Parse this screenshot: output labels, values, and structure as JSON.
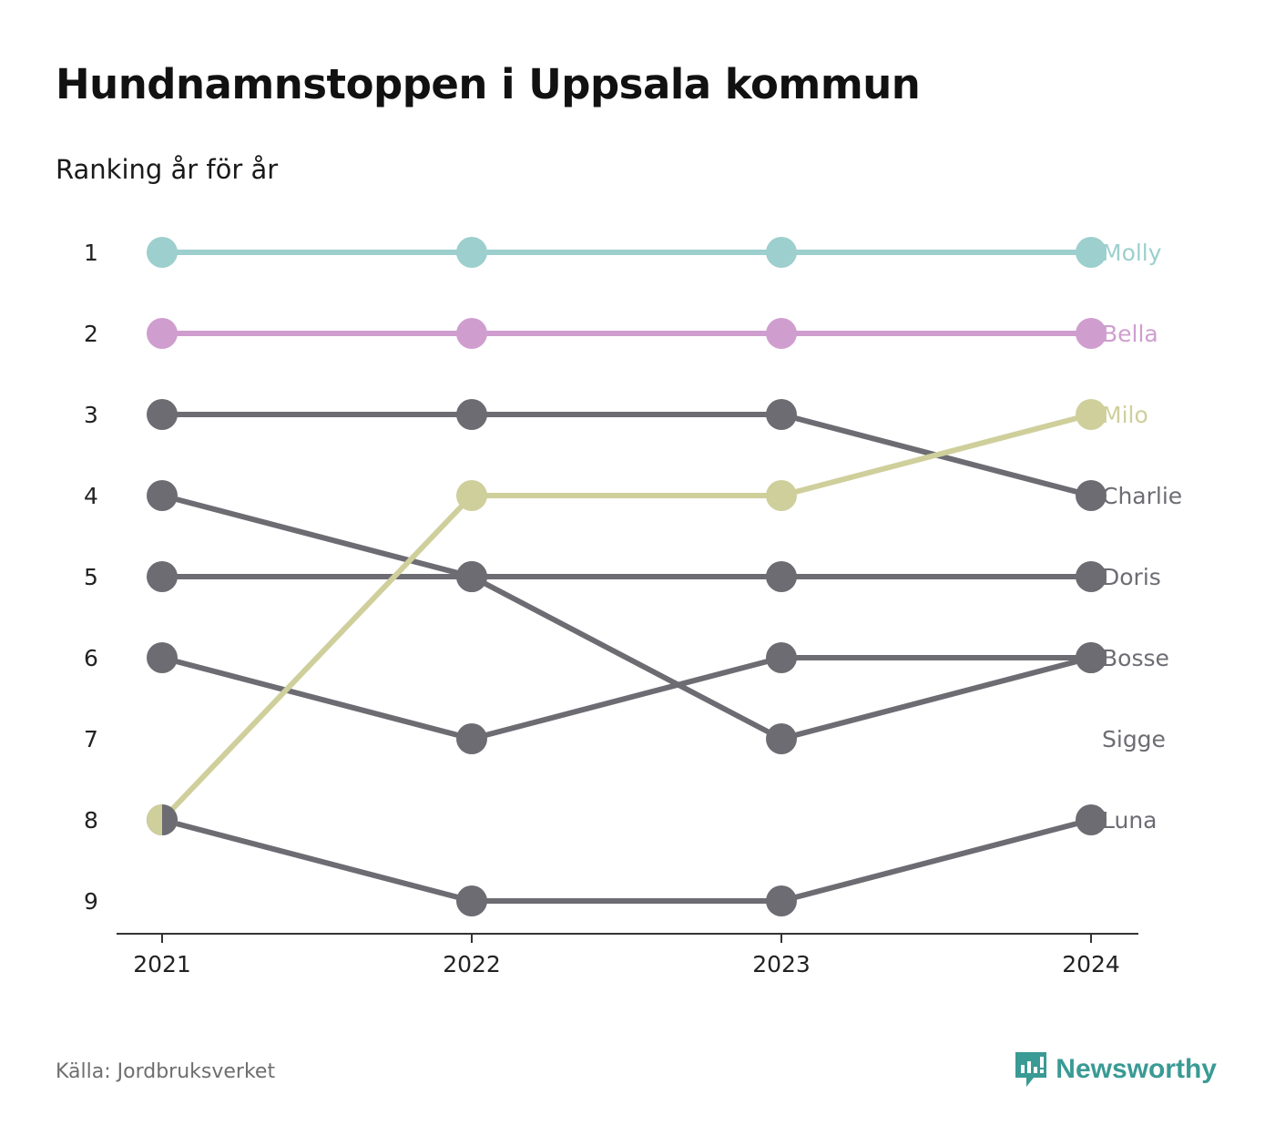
{
  "title": "Hundnamnstoppen i Uppsala kommun",
  "subtitle": "Ranking år för år",
  "source": "Källa: Jordbruksverket",
  "brand": {
    "name": "Newsworthy",
    "icon": "newsworthy-logo-icon",
    "color": "#3a9a94"
  },
  "chart_data": {
    "type": "line",
    "subtype": "bump",
    "x": [
      "2021",
      "2022",
      "2023",
      "2024"
    ],
    "ranks": [
      1,
      2,
      3,
      4,
      5,
      6,
      7,
      8,
      9
    ],
    "y_inverted": true,
    "grid": false,
    "series": [
      {
        "name": "Molly",
        "color": "#9ccfcd",
        "values": [
          1,
          1,
          1,
          1
        ]
      },
      {
        "name": "Bella",
        "color": "#cf9ecf",
        "values": [
          2,
          2,
          2,
          2
        ]
      },
      {
        "name": "Charlie",
        "color": "#6d6c73",
        "values": [
          3,
          3,
          3,
          4
        ]
      },
      {
        "name": "Doris",
        "color": "#6d6c73",
        "values": [
          5,
          5,
          5,
          5
        ]
      },
      {
        "name": "Bosse",
        "color": "#6d6c73",
        "values": [
          6,
          7,
          6,
          6
        ]
      },
      {
        "name": "Sigge",
        "color": "#6d6c73",
        "values": [
          4,
          5,
          7,
          6
        ]
      },
      {
        "name": "Luna",
        "color": "#6d6c73",
        "values": [
          8,
          9,
          9,
          8
        ]
      },
      {
        "name": "Milo",
        "color": "#cfcf9c",
        "values": [
          8,
          4,
          4,
          3
        ]
      }
    ],
    "labels": [
      {
        "name": "Molly",
        "rank": 1,
        "color": "#9ccfcd"
      },
      {
        "name": "Bella",
        "rank": 2,
        "color": "#cf9ecf"
      },
      {
        "name": "Milo",
        "rank": 3,
        "color": "#cfcf9c"
      },
      {
        "name": "Charlie",
        "rank": 4,
        "color": "#6d6c73"
      },
      {
        "name": "Doris",
        "rank": 5,
        "color": "#6d6c73"
      },
      {
        "name": "Bosse",
        "rank": 6,
        "color": "#6d6c73"
      },
      {
        "name": "Sigge",
        "rank": 7,
        "color": "#6d6c73"
      },
      {
        "name": "Luna",
        "rank": 8,
        "color": "#6d6c73"
      }
    ],
    "axis_color": "#333333"
  }
}
